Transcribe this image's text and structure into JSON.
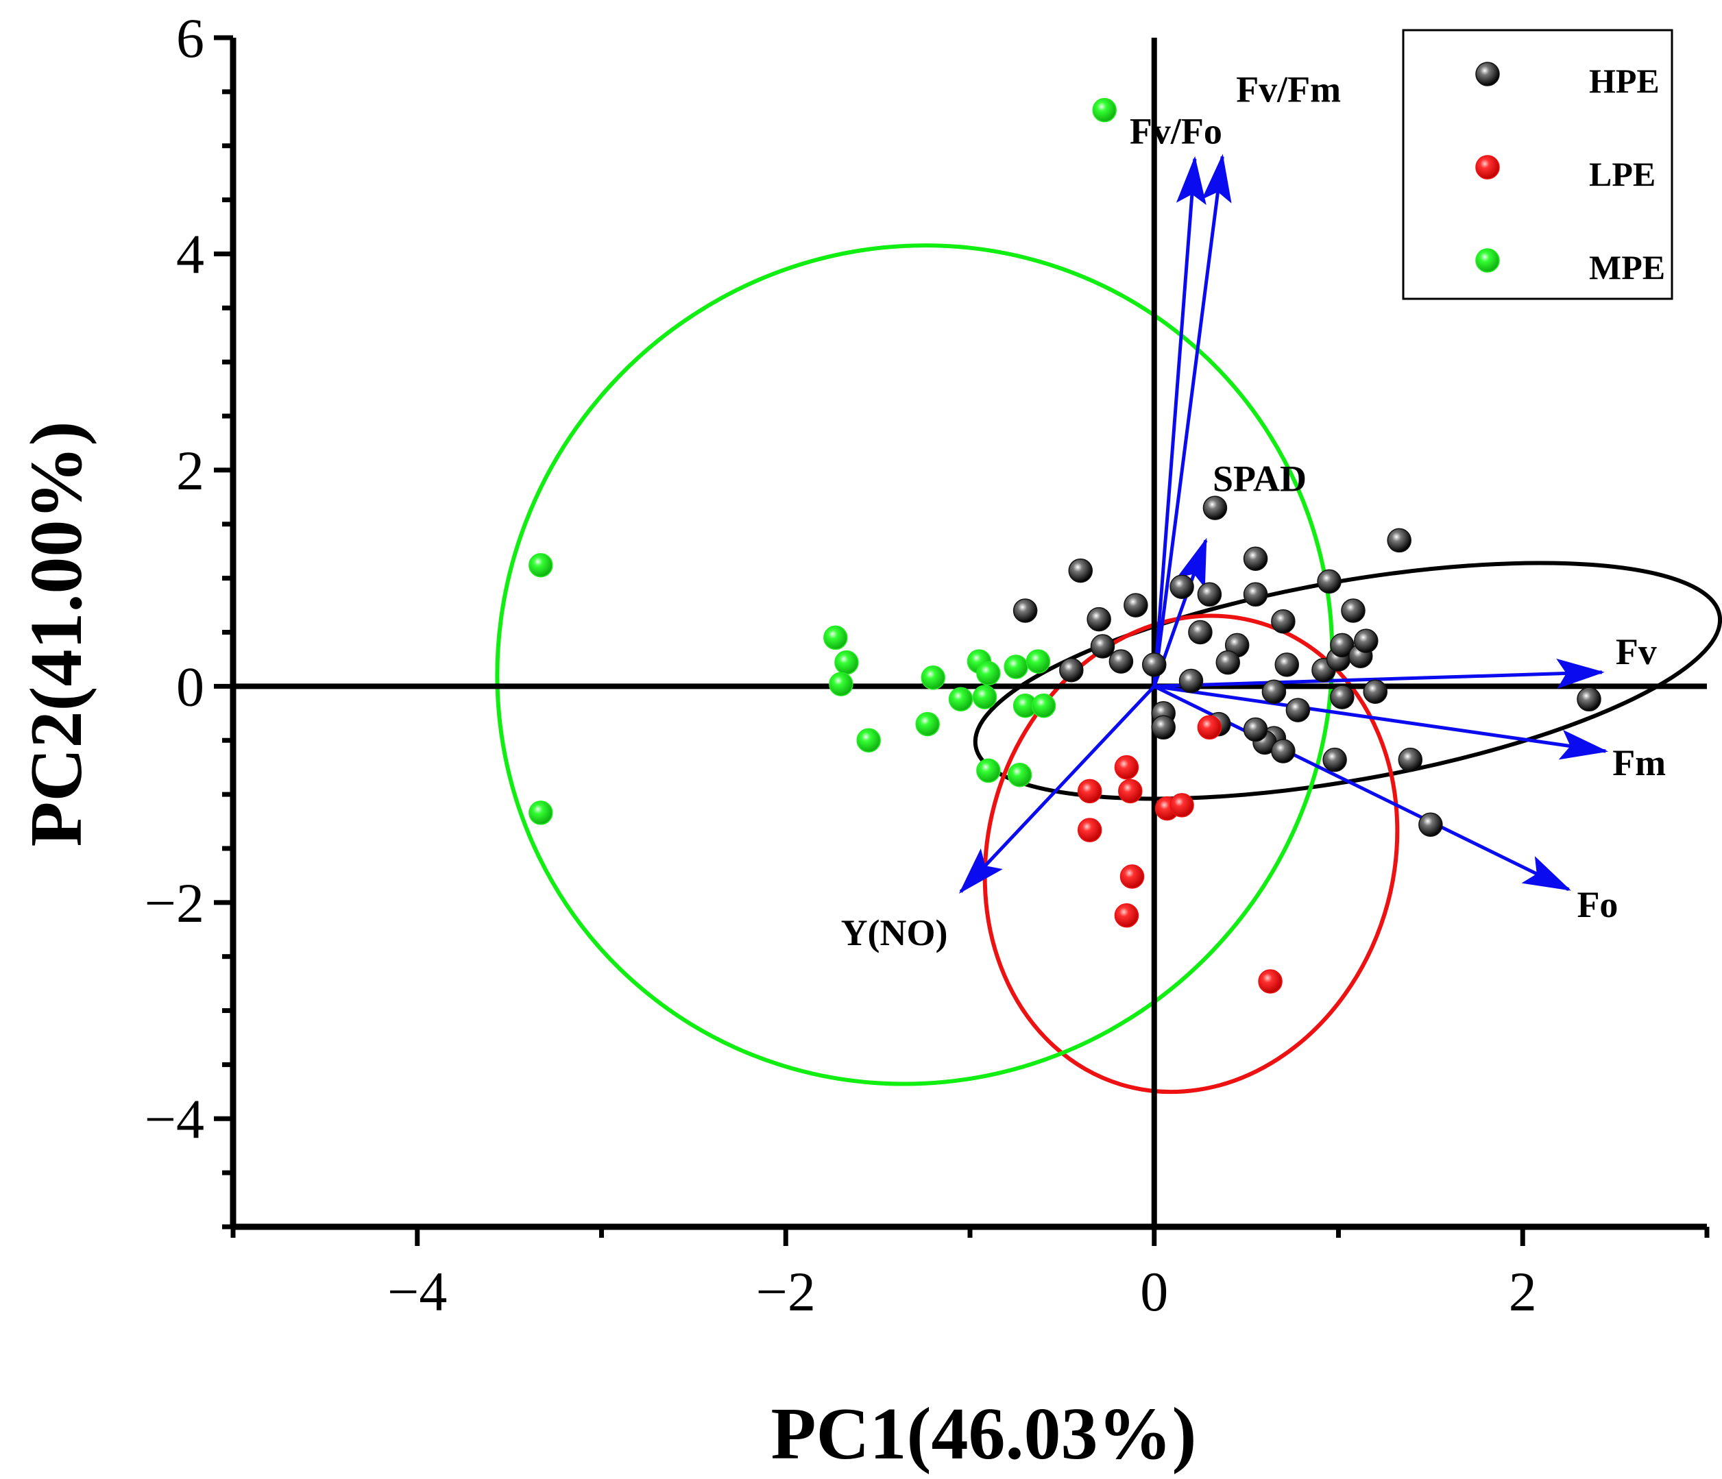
{
  "chart_data": {
    "type": "scatter",
    "title": "",
    "xlabel": "PC1(46.03%)",
    "ylabel": "PC2(41.00%)",
    "xlim": [
      -5,
      3
    ],
    "ylim": [
      -5,
      6
    ],
    "x_ticks": [
      -4,
      -2,
      0,
      2
    ],
    "x_tick_labels": [
      "−4",
      "−2",
      "0",
      "2"
    ],
    "y_ticks": [
      -4,
      -2,
      0,
      2,
      4,
      6
    ],
    "y_tick_labels": [
      "−4",
      "−2",
      "0",
      "2",
      "4",
      "6"
    ],
    "legend_position": "top-right",
    "series": [
      {
        "name": "HPE",
        "color": "#111111",
        "points": [
          [
            -0.7,
            0.7
          ],
          [
            -0.4,
            1.07
          ],
          [
            -0.3,
            0.62
          ],
          [
            -0.45,
            0.15
          ],
          [
            -0.28,
            0.37
          ],
          [
            -0.18,
            0.23
          ],
          [
            -0.1,
            0.75
          ],
          [
            0.15,
            0.92
          ],
          [
            0.25,
            0.5
          ],
          [
            0.3,
            0.85
          ],
          [
            0.33,
            1.65
          ],
          [
            0.45,
            0.38
          ],
          [
            0.4,
            0.22
          ],
          [
            0.2,
            0.05
          ],
          [
            0.0,
            0.2
          ],
          [
            0.05,
            -0.25
          ],
          [
            0.05,
            -0.38
          ],
          [
            0.55,
            0.85
          ],
          [
            0.55,
            1.18
          ],
          [
            0.7,
            0.6
          ],
          [
            0.72,
            0.2
          ],
          [
            0.65,
            -0.48
          ],
          [
            0.6,
            -0.52
          ],
          [
            0.55,
            -0.4
          ],
          [
            0.7,
            -0.6
          ],
          [
            0.78,
            -0.22
          ],
          [
            0.95,
            0.97
          ],
          [
            0.92,
            0.15
          ],
          [
            1.0,
            0.25
          ],
          [
            1.02,
            0.38
          ],
          [
            1.08,
            0.7
          ],
          [
            1.12,
            0.28
          ],
          [
            1.15,
            0.42
          ],
          [
            1.02,
            -0.1
          ],
          [
            1.2,
            -0.05
          ],
          [
            0.98,
            -0.68
          ],
          [
            1.33,
            1.35
          ],
          [
            1.39,
            -0.68
          ],
          [
            1.5,
            -1.28
          ],
          [
            2.36,
            -0.12
          ],
          [
            0.35,
            -0.35
          ],
          [
            0.65,
            -0.05
          ]
        ]
      },
      {
        "name": "LPE",
        "color": "#ee1111",
        "points": [
          [
            0.3,
            -0.38
          ],
          [
            -0.15,
            -0.75
          ],
          [
            -0.35,
            -0.97
          ],
          [
            -0.13,
            -0.97
          ],
          [
            0.07,
            -1.13
          ],
          [
            0.15,
            -1.1
          ],
          [
            -0.35,
            -1.33
          ],
          [
            -0.12,
            -1.76
          ],
          [
            -0.15,
            -2.12
          ],
          [
            0.63,
            -2.73
          ]
        ]
      },
      {
        "name": "MPE",
        "color": "#22ee22",
        "points": [
          [
            -3.33,
            1.12
          ],
          [
            -3.33,
            -1.17
          ],
          [
            -1.73,
            0.45
          ],
          [
            -1.67,
            0.22
          ],
          [
            -1.7,
            0.02
          ],
          [
            -1.55,
            -0.5
          ],
          [
            -1.2,
            0.08
          ],
          [
            -1.23,
            -0.35
          ],
          [
            -1.05,
            -0.12
          ],
          [
            -0.95,
            0.23
          ],
          [
            -0.9,
            0.12
          ],
          [
            -0.92,
            -0.1
          ],
          [
            -0.75,
            0.18
          ],
          [
            -0.63,
            0.23
          ],
          [
            -0.7,
            -0.18
          ],
          [
            -0.6,
            -0.18
          ],
          [
            -0.9,
            -0.78
          ],
          [
            -0.73,
            -0.82
          ],
          [
            -0.27,
            5.33
          ]
        ]
      }
    ],
    "ellipses": [
      {
        "group": "HPE",
        "color": "#000000",
        "center": [
          1.05,
          0.05
        ],
        "rx": 2.05,
        "ry": 0.92,
        "tilt_deg": -10
      },
      {
        "group": "LPE",
        "color": "#ee1111",
        "center": [
          0.2,
          -1.55
        ],
        "rx": 1.1,
        "ry": 2.23,
        "tilt_deg": 17
      },
      {
        "group": "MPE",
        "color": "#11ee11",
        "center": [
          -1.3,
          0.2
        ],
        "rx": 2.3,
        "ry": 3.82,
        "tilt_deg": -50
      }
    ],
    "loadings": [
      {
        "name": "Fv/Fm",
        "x": 0.37,
        "y": 4.9
      },
      {
        "name": "Fv/Fo",
        "x": 0.22,
        "y": 4.88
      },
      {
        "name": "SPAD",
        "x": 0.28,
        "y": 1.35
      },
      {
        "name": "Fv",
        "x": 2.43,
        "y": 0.13
      },
      {
        "name": "Fm",
        "x": 2.45,
        "y": -0.6
      },
      {
        "name": "Fo",
        "x": 2.25,
        "y": -1.88
      },
      {
        "name": "Y(NO)",
        "x": -1.05,
        "y": -1.9
      }
    ],
    "vector_color": "#0b0bf0"
  }
}
